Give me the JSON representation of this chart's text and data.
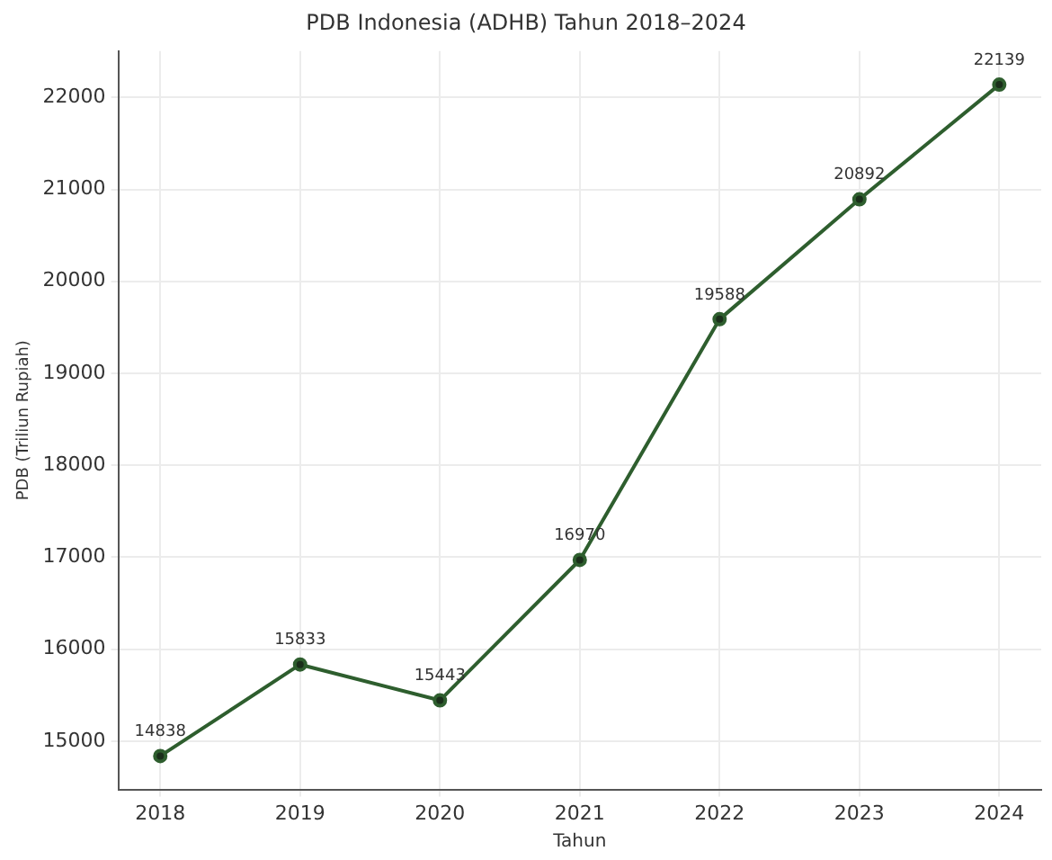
{
  "chart_data": {
    "type": "line",
    "title": "PDB Indonesia (ADHB) Tahun 2018–2024",
    "xlabel": "Tahun",
    "ylabel": "PDB (Triliun Rupiah)",
    "x": [
      2018,
      2019,
      2020,
      2021,
      2022,
      2023,
      2024
    ],
    "values": [
      14838,
      15833,
      15443,
      16970,
      19588,
      20892,
      22139
    ],
    "color": "#2e5e2e",
    "xlim": [
      2017.7,
      2024.3
    ],
    "xticks": [
      2018,
      2019,
      2020,
      2021,
      2022,
      2023,
      2024
    ],
    "ylim": [
      14474,
      22504
    ],
    "yticks": [
      15000,
      16000,
      17000,
      18000,
      19000,
      20000,
      21000,
      22000
    ],
    "grid": true,
    "marker": "circle",
    "line_style": "solid",
    "data_labels": true
  }
}
